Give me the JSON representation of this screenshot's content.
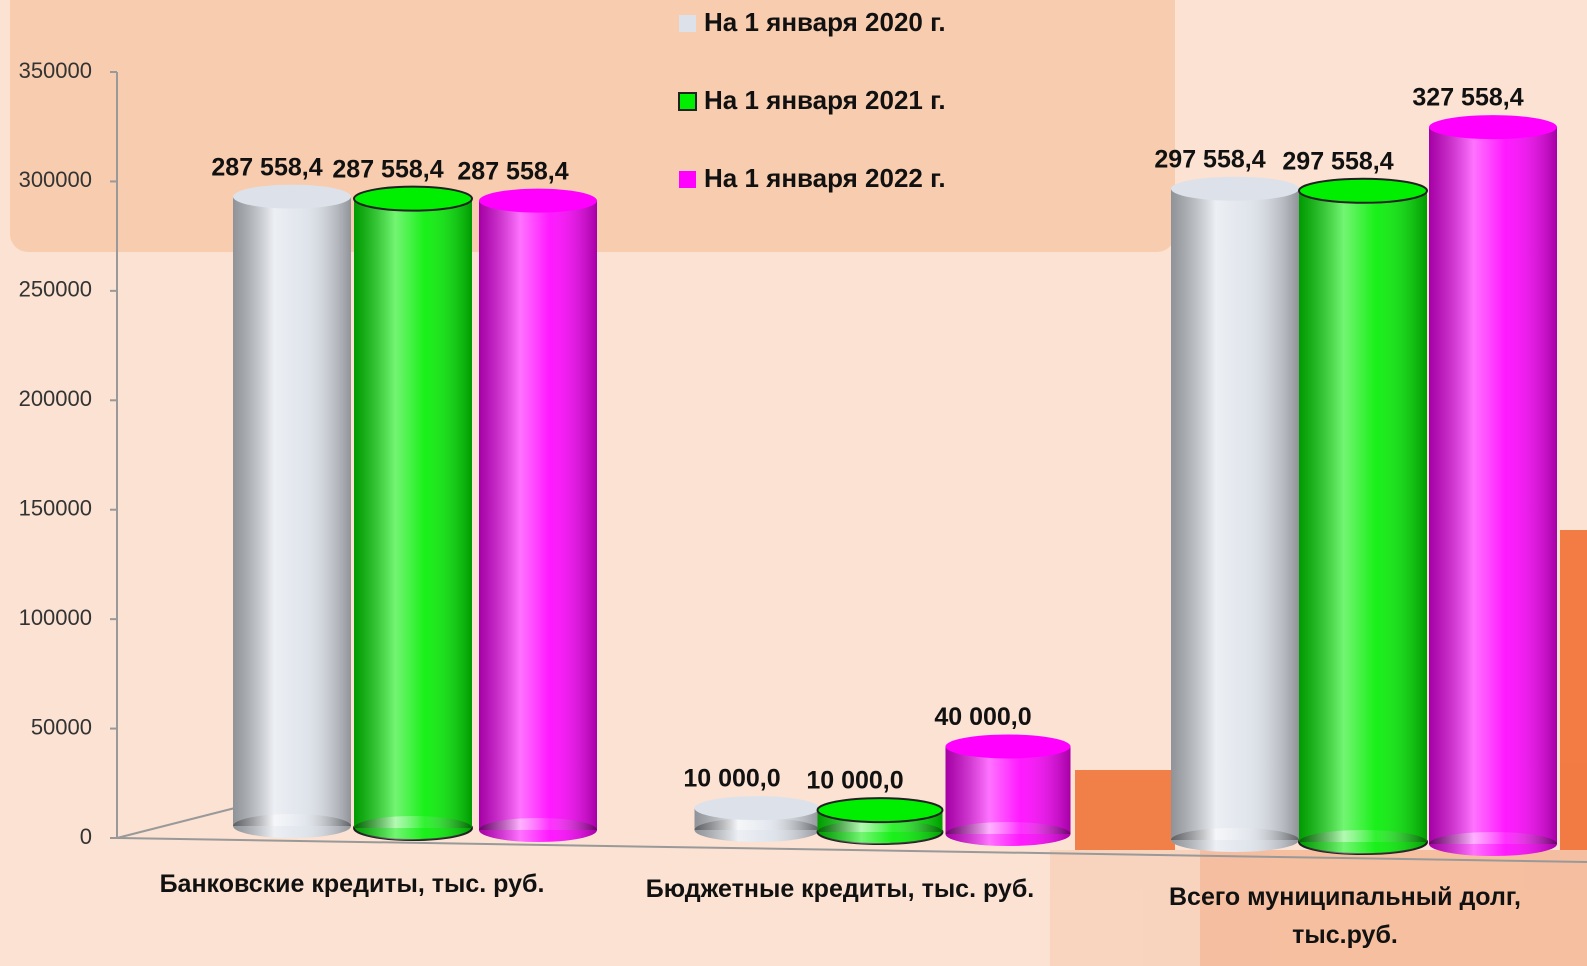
{
  "chart_data": {
    "type": "bar",
    "categories": [
      "Банковские кредиты, тыс. руб.",
      "Бюджетные кредиты, тыс. руб.",
      "Всего муниципальный долг, тыс.руб."
    ],
    "series": [
      {
        "name": "На 1 января 2020 г.",
        "color": "#dde2ea",
        "values": [
          287558.4,
          10000.0,
          297558.4
        ],
        "value_labels": [
          "287 558,4",
          "10 000,0",
          "297 558,4"
        ]
      },
      {
        "name": "На 1 января 2021 г.",
        "color": "#00ee00",
        "values": [
          287558.4,
          10000.0,
          297558.4
        ],
        "value_labels": [
          "287 558,4",
          "10 000,0",
          "297 558,4"
        ]
      },
      {
        "name": "На 1 января 2022 г.",
        "color": "#ff00ff",
        "values": [
          287558.4,
          40000.0,
          327558.4
        ],
        "value_labels": [
          "287 558,4",
          "40 000,0",
          "327 558,4"
        ]
      }
    ],
    "ylim": [
      0,
      350000
    ],
    "yticks": [
      0,
      50000,
      100000,
      150000,
      200000,
      250000,
      300000,
      350000
    ]
  }
}
